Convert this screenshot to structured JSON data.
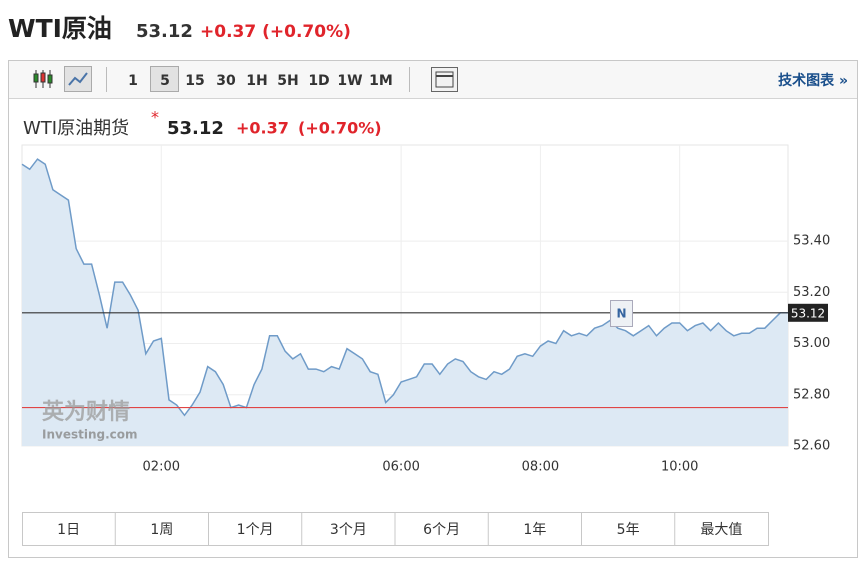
{
  "header": {
    "title": "WTI原油",
    "price": "53.12",
    "change": "+0.37 (+0.70%)"
  },
  "toolbar": {
    "intervals": [
      "1",
      "5",
      "15",
      "30",
      "1H",
      "5H",
      "1D",
      "1W",
      "1M"
    ],
    "selected_index": 1,
    "link": "技术图表 »"
  },
  "chart_data": {
    "type": "area",
    "title": "WTI原油期货",
    "price": "53.12",
    "change": "+0.37",
    "change_percent": "(+0.70%)",
    "categories": [
      null,
      null,
      null,
      null,
      null,
      null,
      null,
      null,
      null,
      null,
      null,
      null,
      null,
      null,
      null,
      null,
      null,
      null,
      "02:00",
      null,
      null,
      null,
      null,
      null,
      null,
      null,
      null,
      null,
      null,
      null,
      null,
      null,
      null,
      null,
      null,
      null,
      null,
      null,
      null,
      null,
      null,
      null,
      null,
      null,
      null,
      null,
      null,
      null,
      null,
      "06:00",
      null,
      null,
      null,
      null,
      null,
      null,
      null,
      null,
      null,
      null,
      null,
      null,
      null,
      null,
      null,
      null,
      null,
      "08:00",
      null,
      null,
      null,
      null,
      null,
      null,
      null,
      null,
      null,
      null,
      null,
      null,
      null,
      null,
      null,
      null,
      null,
      "10:00",
      null,
      null,
      null,
      null,
      null,
      null,
      null,
      null,
      null,
      null,
      null,
      null,
      null,
      null
    ],
    "series": [
      {
        "name": "WTI原油期货",
        "color": "#6f9bc8",
        "fill": "#dde9f4",
        "values": [
          53.7,
          53.68,
          53.72,
          53.7,
          53.6,
          53.58,
          53.56,
          53.37,
          53.31,
          53.31,
          53.19,
          53.06,
          53.24,
          53.24,
          53.19,
          53.13,
          52.96,
          53.01,
          53.02,
          52.78,
          52.76,
          52.72,
          52.76,
          52.81,
          52.91,
          52.89,
          52.84,
          52.75,
          52.76,
          52.75,
          52.84,
          52.9,
          53.03,
          53.03,
          52.97,
          52.94,
          52.96,
          52.9,
          52.9,
          52.89,
          52.91,
          52.9,
          52.98,
          52.96,
          52.94,
          52.89,
          52.88,
          52.77,
          52.8,
          52.85,
          52.86,
          52.87,
          52.92,
          52.92,
          52.88,
          52.92,
          52.94,
          52.93,
          52.89,
          52.87,
          52.86,
          52.89,
          52.88,
          52.9,
          52.95,
          52.96,
          52.95,
          52.99,
          53.01,
          53.0,
          53.05,
          53.03,
          53.04,
          53.03,
          53.06,
          53.07,
          53.09,
          53.06,
          53.05,
          53.03,
          53.05,
          53.07,
          53.03,
          53.06,
          53.08,
          53.08,
          53.05,
          53.07,
          53.08,
          53.05,
          53.08,
          53.05,
          53.03,
          53.04,
          53.04,
          53.06,
          53.06,
          53.09,
          53.12,
          53.12
        ]
      }
    ],
    "ylim": [
      52.6,
      53.775
    ],
    "yticks": [
      {
        "value": 52.6,
        "label": "52.60"
      },
      {
        "value": 52.8,
        "label": "52.80"
      },
      {
        "value": 53.0,
        "label": "53.00"
      },
      {
        "value": 53.2,
        "label": "53.20"
      },
      {
        "value": 53.4,
        "label": "53.40"
      }
    ],
    "grid": true,
    "reference_lines": [
      {
        "value": 53.12,
        "color": "#333333"
      },
      {
        "value": 52.75,
        "color": "#e04545"
      }
    ],
    "annotation": "N"
  },
  "watermark": {
    "brand": "英为财情",
    "site": "Investing.com"
  },
  "ranges": [
    "1日",
    "1周",
    "1个月",
    "3个月",
    "6个月",
    "1年",
    "5年",
    "最大值"
  ]
}
